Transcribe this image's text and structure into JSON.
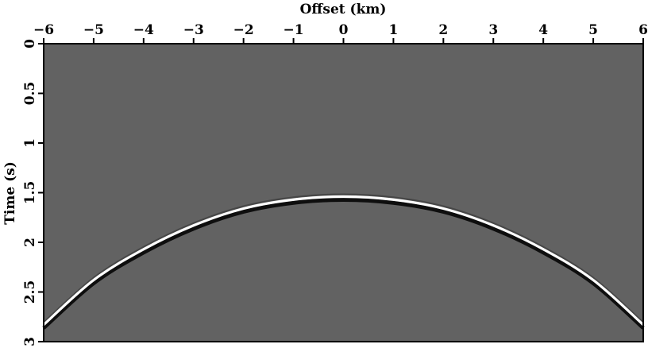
{
  "chart_data": {
    "type": "seismic",
    "xlabel": "Offset (km)",
    "ylabel": "Time (s)",
    "x": [
      -6,
      -5,
      -4,
      -3,
      -2,
      -1,
      0,
      1,
      2,
      3,
      4,
      5,
      6
    ],
    "values": [
      2.83,
      2.38,
      2.07,
      1.83,
      1.66,
      1.57,
      1.54,
      1.57,
      1.66,
      1.83,
      2.07,
      2.38,
      2.83
    ],
    "xlim": [
      -6,
      6
    ],
    "ylim": [
      3,
      0
    ],
    "xticks": [
      {
        "value": -6,
        "label": "−6"
      },
      {
        "value": -5,
        "label": "−5"
      },
      {
        "value": -4,
        "label": "−4"
      },
      {
        "value": -3,
        "label": "−3"
      },
      {
        "value": -2,
        "label": "−2"
      },
      {
        "value": -1,
        "label": "−1"
      },
      0,
      1,
      2,
      3,
      4,
      5,
      6
    ],
    "yticks": [
      0,
      0.5,
      1,
      1.5,
      2,
      2.5,
      3
    ],
    "background": "#626262",
    "color": "#ffffff"
  }
}
